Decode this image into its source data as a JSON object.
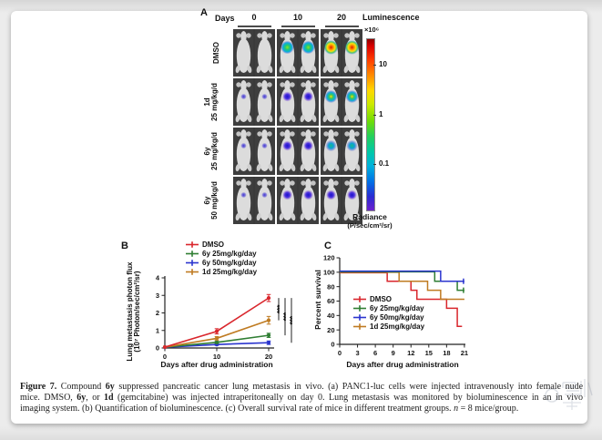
{
  "panel_a": {
    "label": "A",
    "days_label": "Days",
    "day_columns": [
      "0",
      "10",
      "20"
    ],
    "luminescence_label": "Luminescence",
    "scale": {
      "multiplier": "×10⁶",
      "ticks": [
        "10",
        "1",
        "0.1"
      ],
      "radiance_label": "Radiance",
      "radiance_units": "(P/sec/cm²/sr)"
    },
    "rows": [
      {
        "label_line1": "DMSO",
        "label_line2": "",
        "signals": [
          "none",
          "green-ring",
          "red-hot"
        ]
      },
      {
        "label_line1": "1d",
        "label_line2": "25 mg/kg/d",
        "signals": [
          "faint-blue",
          "blue",
          "cyan-ring"
        ]
      },
      {
        "label_line1": "6y",
        "label_line2": "25 mg/kg/d",
        "signals": [
          "faint-blue",
          "blue",
          "blue-green"
        ]
      },
      {
        "label_line1": "6y",
        "label_line2": "50 mg/kg/d",
        "signals": [
          "faint-blue",
          "blue",
          "blue"
        ]
      }
    ],
    "signal_palette": {
      "faint-blue": {
        "r": 3.2,
        "stops": [
          [
            0,
            "#3b2fd4",
            0.95
          ],
          [
            60,
            "#3b2fd4",
            0.55
          ],
          [
            100,
            "#3b2fd4",
            0
          ]
        ]
      },
      "blue": {
        "r": 5.5,
        "stops": [
          [
            0,
            "#1b12c8",
            1
          ],
          [
            50,
            "#4428e0",
            0.95
          ],
          [
            100,
            "#7a3ad0",
            0
          ]
        ]
      },
      "cyan-ring": {
        "r": 7.0,
        "stops": [
          [
            0,
            "#ffe000",
            1
          ],
          [
            30,
            "#39c85a",
            1
          ],
          [
            65,
            "#00aadc",
            0.95
          ],
          [
            100,
            "#2336d2",
            0
          ]
        ]
      },
      "blue-green": {
        "r": 6.2,
        "stops": [
          [
            0,
            "#19b88a",
            1
          ],
          [
            45,
            "#009fd4",
            0.95
          ],
          [
            100,
            "#2c2cd4",
            0
          ]
        ]
      },
      "green-ring": {
        "r": 7.2,
        "stops": [
          [
            0,
            "#8fe31e",
            1
          ],
          [
            35,
            "#1ec878",
            1
          ],
          [
            70,
            "#00a9e0",
            0.95
          ],
          [
            100,
            "#2a40d8",
            0
          ]
        ]
      },
      "red-hot": {
        "r": 7.8,
        "stops": [
          [
            0,
            "#df1900",
            1
          ],
          [
            30,
            "#ff8a00",
            1
          ],
          [
            55,
            "#ffe300",
            0.95
          ],
          [
            78,
            "#35c05c",
            0.85
          ],
          [
            100,
            "#0b7fe0",
            0
          ]
        ]
      }
    }
  },
  "chart_data": [
    {
      "panel_label": "B",
      "type": "line",
      "title": "",
      "xlabel": "Days after drug administration",
      "ylabel": "Lung metastasis photon flux",
      "ylabel2": "(10⁷ Photon/sec/cm²/sr)",
      "x": [
        0,
        10,
        20
      ],
      "xticks": [
        0,
        10,
        20
      ],
      "yticks": [
        0,
        1,
        2,
        3,
        4
      ],
      "xlim": [
        0,
        21
      ],
      "ylim": [
        0,
        4
      ],
      "legend_position": "top-left",
      "grid": false,
      "series": [
        {
          "name": "DMSO",
          "color": "#d9262c",
          "values": [
            0.05,
            0.95,
            2.85
          ],
          "errors": [
            0,
            0.15,
            0.2
          ]
        },
        {
          "name": "6y 25mg/kg/day",
          "color": "#2f7e33",
          "values": [
            0.05,
            0.32,
            0.72
          ],
          "errors": [
            0,
            0.06,
            0.12
          ]
        },
        {
          "name": "6y 50mg/kg/day",
          "color": "#2b35cf",
          "values": [
            0.04,
            0.2,
            0.3
          ],
          "errors": [
            0,
            0.05,
            0.1
          ]
        },
        {
          "name": "1d 25mg/kg/day",
          "color": "#bf7b22",
          "values": [
            0.05,
            0.55,
            1.58
          ],
          "errors": [
            0,
            0.1,
            0.22
          ]
        }
      ],
      "significance": [
        {
          "label": "***",
          "between": [
            "DMSO",
            "1d 25mg/kg/day"
          ]
        },
        {
          "label": "***",
          "between": [
            "DMSO",
            "6y 25mg/kg/day"
          ]
        },
        {
          "label": "***",
          "between": [
            "DMSO",
            "6y 50mg/kg/day"
          ]
        }
      ]
    },
    {
      "panel_label": "C",
      "type": "line",
      "subtype": "kaplan-meier-step",
      "title": "",
      "xlabel": "Days after drug administration",
      "ylabel": "Percent survival",
      "xticks": [
        0,
        3,
        6,
        9,
        12,
        15,
        18,
        21
      ],
      "yticks": [
        0,
        20,
        40,
        60,
        80,
        100,
        120
      ],
      "xlim": [
        0,
        21
      ],
      "ylim": [
        0,
        120
      ],
      "legend_position": "inside-lower-left",
      "grid": false,
      "series": [
        {
          "name": "DMSO",
          "color": "#d9262c",
          "end_tick": false,
          "points": [
            [
              0,
              100
            ],
            [
              8,
              100
            ],
            [
              8,
              87.5
            ],
            [
              12,
              87.5
            ],
            [
              12,
              75
            ],
            [
              13,
              75
            ],
            [
              13,
              62.5
            ],
            [
              18,
              62.5
            ],
            [
              18,
              50
            ],
            [
              19.8,
              50
            ],
            [
              19.8,
              25
            ],
            [
              20.6,
              25
            ]
          ]
        },
        {
          "name": "6y 25mg/kg/day",
          "color": "#2f7e33",
          "end_tick": true,
          "points": [
            [
              0,
              100
            ],
            [
              16,
              100
            ],
            [
              16,
              87.5
            ],
            [
              19.8,
              87.5
            ],
            [
              19.8,
              75
            ],
            [
              21,
              75
            ]
          ]
        },
        {
          "name": "6y 50mg/kg/day",
          "color": "#2b35cf",
          "end_tick": true,
          "points": [
            [
              0,
              100
            ],
            [
              17,
              100
            ],
            [
              17,
              87.5
            ],
            [
              21,
              87.5
            ]
          ]
        },
        {
          "name": "1d 25mg/kg/day",
          "color": "#bf7b22",
          "end_tick": false,
          "points": [
            [
              0,
              100
            ],
            [
              10,
              100
            ],
            [
              10,
              87.5
            ],
            [
              14.8,
              87.5
            ],
            [
              14.8,
              75
            ],
            [
              17,
              75
            ],
            [
              17,
              62.5
            ],
            [
              21,
              62.5
            ]
          ]
        }
      ]
    }
  ],
  "caption": {
    "lines": [
      [
        {
          "t": "Figure 7.",
          "b": true
        },
        {
          "t": " Compound "
        },
        {
          "t": "6y",
          "b": true
        },
        {
          "t": " suppressed pancreatic cancer lung metastasis in vivo. (a) PANC1-luc cells were injected intravenously into female nude"
        }
      ],
      [
        {
          "t": "mice. DMSO, "
        },
        {
          "t": "6y",
          "b": true
        },
        {
          "t": ", or "
        },
        {
          "t": "1d",
          "b": true
        },
        {
          "t": " (gemcitabine) was injected intraperitoneally on day 0. Lung metastasis was monitored by bioluminescence in an in vivo"
        }
      ],
      [
        {
          "t": "imaging system. (b) Quantification of bioluminescence. (c) Overall survival rate of mice in different treatment groups. "
        },
        {
          "t": "n",
          "i": true
        },
        {
          "t": " = 8 mice/group."
        }
      ]
    ]
  }
}
